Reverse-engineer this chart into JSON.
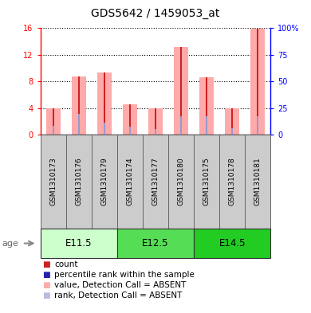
{
  "title": "GDS5642 / 1459053_at",
  "samples": [
    "GSM1310173",
    "GSM1310176",
    "GSM1310179",
    "GSM1310174",
    "GSM1310177",
    "GSM1310180",
    "GSM1310175",
    "GSM1310178",
    "GSM1310181"
  ],
  "groups": [
    {
      "label": "E11.5",
      "start": 0,
      "end": 3
    },
    {
      "label": "E12.5",
      "start": 3,
      "end": 6
    },
    {
      "label": "E14.5",
      "start": 6,
      "end": 9
    }
  ],
  "pink_bars": [
    4.0,
    8.7,
    9.3,
    4.5,
    3.9,
    13.2,
    8.6,
    3.9,
    15.9
  ],
  "blue_rank_bars": [
    1.3,
    3.1,
    1.8,
    1.2,
    0.8,
    2.8,
    2.8,
    0.9,
    2.8
  ],
  "ylim_left": [
    0,
    16
  ],
  "ylim_right": [
    0,
    100
  ],
  "yticks_left": [
    0,
    4,
    8,
    12,
    16
  ],
  "yticks_right": [
    0,
    25,
    50,
    75,
    100
  ],
  "ytick_labels_right": [
    "0",
    "25",
    "50",
    "75",
    "100%"
  ],
  "bar_color_pink": "#FFAAAA",
  "bar_color_blue": "#9999CC",
  "bar_color_red": "#CC2222",
  "bar_color_darkblue": "#2222AA",
  "bar_color_rank_absent": "#BBBBDD",
  "group_colors": [
    "#CCFFCC",
    "#55DD55",
    "#22CC22"
  ],
  "group_border_color": "#333333",
  "legend_colors": [
    "#CC2222",
    "#2222AA",
    "#FFAAAA",
    "#BBBBDD"
  ],
  "legend_labels": [
    "count",
    "percentile rank within the sample",
    "value, Detection Call = ABSENT",
    "rank, Detection Call = ABSENT"
  ],
  "age_label": "age",
  "title_fontsize": 10,
  "tick_fontsize": 7,
  "legend_fontsize": 7.5,
  "sample_box_color": "#CCCCCC",
  "sample_box_edge": "#666666"
}
